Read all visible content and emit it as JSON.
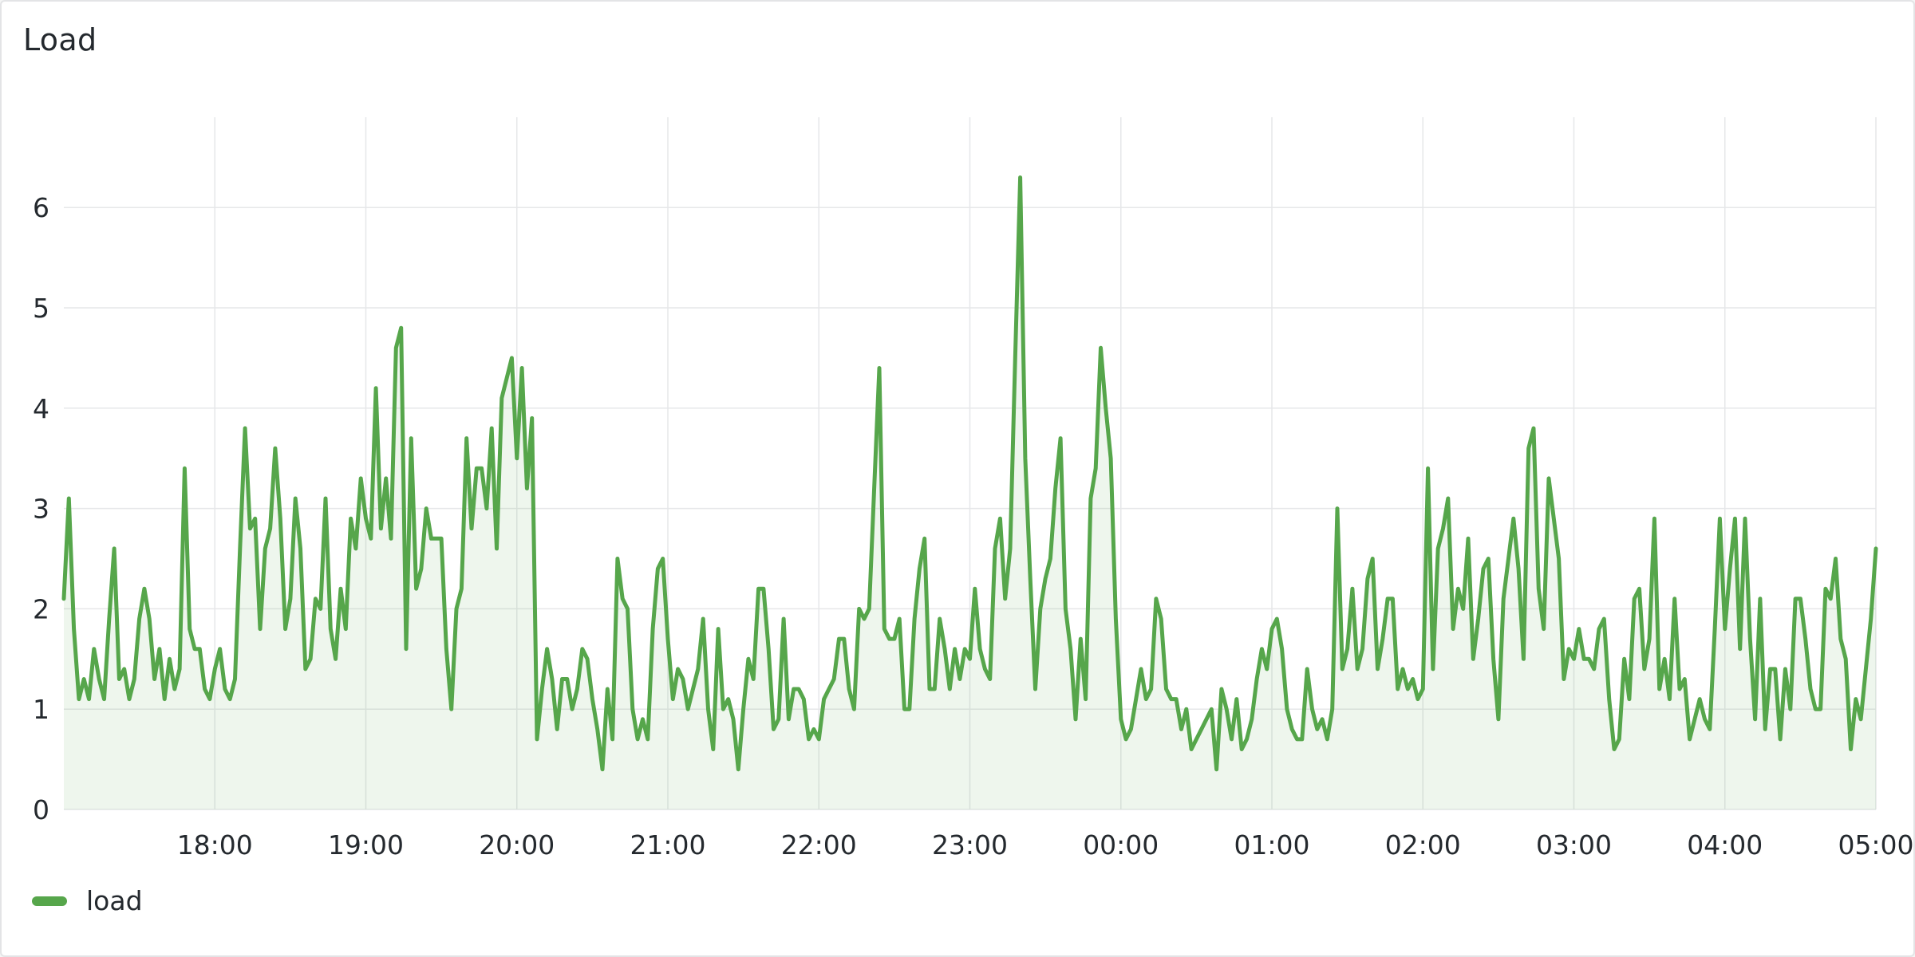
{
  "panel": {
    "title": "Load"
  },
  "legend": {
    "label": "load"
  },
  "colors": {
    "line": "#56a64b",
    "fill": "#56a64b",
    "grid": "#e6e7e9",
    "text": "#24292e"
  },
  "chart_data": {
    "type": "area",
    "title": "Load",
    "xlabel": "",
    "ylabel": "",
    "ylim": [
      0,
      6.9
    ],
    "yticks": [
      "0",
      "1",
      "2",
      "3",
      "4",
      "5",
      "6"
    ],
    "xlim": [
      -1.0,
      11.0
    ],
    "xticks": [
      {
        "label": "18:00",
        "value": 0
      },
      {
        "label": "19:00",
        "value": 1
      },
      {
        "label": "20:00",
        "value": 2
      },
      {
        "label": "21:00",
        "value": 3
      },
      {
        "label": "22:00",
        "value": 4
      },
      {
        "label": "23:00",
        "value": 5
      },
      {
        "label": "00:00",
        "value": 6
      },
      {
        "label": "01:00",
        "value": 7
      },
      {
        "label": "02:00",
        "value": 8
      },
      {
        "label": "03:00",
        "value": 9
      },
      {
        "label": "04:00",
        "value": 10
      },
      {
        "label": "05:00",
        "value": 11
      }
    ],
    "grid": true,
    "legend_position": "bottom-left",
    "series": [
      {
        "name": "load",
        "values": [
          2.1,
          3.1,
          1.8,
          1.1,
          1.3,
          1.1,
          1.6,
          1.3,
          1.1,
          1.9,
          2.6,
          1.3,
          1.4,
          1.1,
          1.3,
          1.9,
          2.2,
          1.9,
          1.3,
          1.6,
          1.1,
          1.5,
          1.2,
          1.4,
          3.4,
          1.8,
          1.6,
          1.6,
          1.2,
          1.1,
          1.4,
          1.6,
          1.2,
          1.1,
          1.3,
          2.6,
          3.8,
          2.8,
          2.9,
          1.8,
          2.6,
          2.8,
          3.6,
          2.9,
          1.8,
          2.1,
          3.1,
          2.6,
          1.4,
          1.5,
          2.1,
          2.0,
          3.1,
          1.8,
          1.5,
          2.2,
          1.8,
          2.9,
          2.6,
          3.3,
          2.9,
          2.7,
          4.2,
          2.8,
          3.3,
          2.7,
          4.6,
          4.8,
          1.6,
          3.7,
          2.2,
          2.4,
          3.0,
          2.7,
          2.7,
          2.7,
          1.6,
          1.0,
          2.0,
          2.2,
          3.7,
          2.8,
          3.4,
          3.4,
          3.0,
          3.8,
          2.6,
          4.1,
          4.3,
          4.5,
          3.5,
          4.4,
          3.2,
          3.9,
          0.7,
          1.2,
          1.6,
          1.3,
          0.8,
          1.3,
          1.3,
          1.0,
          1.2,
          1.6,
          1.5,
          1.1,
          0.8,
          0.4,
          1.2,
          0.7,
          2.5,
          2.1,
          2.0,
          1.0,
          0.7,
          0.9,
          0.7,
          1.8,
          2.4,
          2.5,
          1.7,
          1.1,
          1.4,
          1.3,
          1.0,
          1.2,
          1.4,
          1.9,
          1.0,
          0.6,
          1.8,
          1.0,
          1.1,
          0.9,
          0.4,
          1.0,
          1.5,
          1.3,
          2.2,
          2.2,
          1.6,
          0.8,
          0.9,
          1.9,
          0.9,
          1.2,
          1.2,
          1.1,
          0.7,
          0.8,
          0.7,
          1.1,
          1.2,
          1.3,
          1.7,
          1.7,
          1.2,
          1.0,
          2.0,
          1.9,
          2.0,
          3.2,
          4.4,
          1.8,
          1.7,
          1.7,
          1.9,
          1.0,
          1.0,
          1.9,
          2.4,
          2.7,
          1.2,
          1.2,
          1.9,
          1.6,
          1.2,
          1.6,
          1.3,
          1.6,
          1.5,
          2.2,
          1.6,
          1.4,
          1.3,
          2.6,
          2.9,
          2.1,
          2.6,
          4.5,
          6.3,
          3.5,
          2.3,
          1.2,
          2.0,
          2.3,
          2.5,
          3.2,
          3.7,
          2.0,
          1.6,
          0.9,
          1.7,
          1.1,
          3.1,
          3.4,
          4.6,
          4.0,
          3.5,
          1.9,
          0.9,
          0.7,
          0.8,
          1.1,
          1.4,
          1.1,
          1.2,
          2.1,
          1.9,
          1.2,
          1.1,
          1.1,
          0.8,
          1.0,
          0.6,
          0.7,
          0.8,
          0.9,
          1.0,
          0.4,
          1.2,
          1.0,
          0.7,
          1.1,
          0.6,
          0.7,
          0.9,
          1.3,
          1.6,
          1.4,
          1.8,
          1.9,
          1.6,
          1.0,
          0.8,
          0.7,
          0.7,
          1.4,
          1.0,
          0.8,
          0.9,
          0.7,
          1.0,
          3.0,
          1.4,
          1.6,
          2.2,
          1.4,
          1.6,
          2.3,
          2.5,
          1.4,
          1.7,
          2.1,
          2.1,
          1.2,
          1.4,
          1.2,
          1.3,
          1.1,
          1.2,
          3.4,
          1.4,
          2.6,
          2.8,
          3.1,
          1.8,
          2.2,
          2.0,
          2.7,
          1.5,
          1.9,
          2.4,
          2.5,
          1.5,
          0.9,
          2.1,
          2.5,
          2.9,
          2.4,
          1.5,
          3.6,
          3.8,
          2.2,
          1.8,
          3.3,
          2.9,
          2.5,
          1.3,
          1.6,
          1.5,
          1.8,
          1.5,
          1.5,
          1.4,
          1.8,
          1.9,
          1.1,
          0.6,
          0.7,
          1.5,
          1.1,
          2.1,
          2.2,
          1.4,
          1.7,
          2.9,
          1.2,
          1.5,
          1.1,
          2.1,
          1.2,
          1.3,
          0.7,
          0.9,
          1.1,
          0.9,
          0.8,
          1.8,
          2.9,
          1.8,
          2.4,
          2.9,
          1.6,
          2.9,
          1.7,
          0.9,
          2.1,
          0.8,
          1.4,
          1.4,
          0.7,
          1.4,
          1.0,
          2.1,
          2.1,
          1.7,
          1.2,
          1.0,
          1.0,
          2.2,
          2.1,
          2.5,
          1.7,
          1.5,
          0.6,
          1.1,
          0.9,
          1.4,
          1.9,
          2.6
        ]
      }
    ]
  }
}
